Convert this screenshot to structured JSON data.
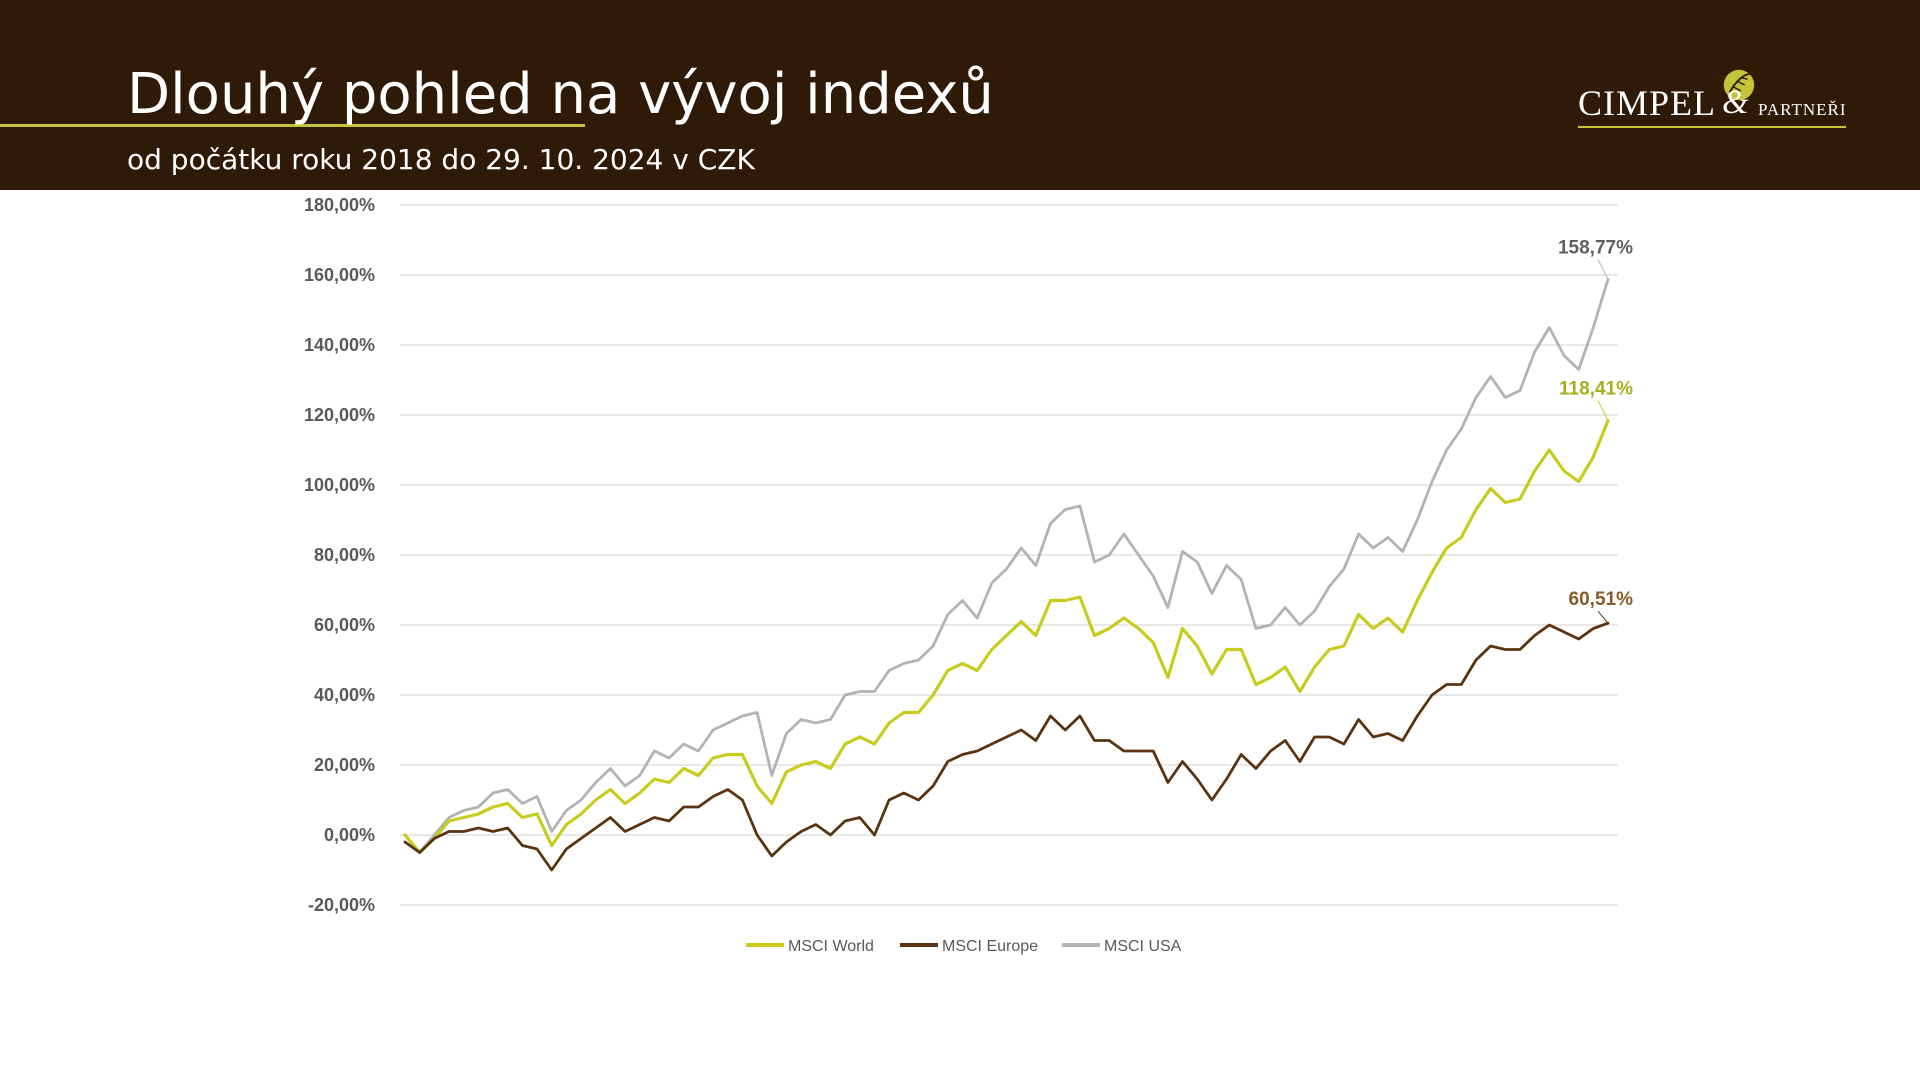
{
  "header": {
    "title": "Dlouhý pohled na vývoj indexů",
    "subtitle": "od počátku roku 2018 do 29. 10. 2024 v CZK"
  },
  "logo": {
    "word": "CIMPEL",
    "amp": "&",
    "partners": "PARTNEŘI",
    "icon": "leaf-logo-icon"
  },
  "colors": {
    "header_bg": "#2f1a08",
    "accent": "#c3c43a",
    "world": "#c7cc1f",
    "europe": "#5a3410",
    "usa": "#b3b3b3",
    "grid": "#d9d9d9"
  },
  "chart_data": {
    "type": "line",
    "title": "",
    "xlabel": "",
    "ylabel": "",
    "ylim": [
      -20,
      180
    ],
    "yticks": [
      -20,
      0,
      20,
      40,
      60,
      80,
      100,
      120,
      140,
      160,
      180
    ],
    "ytick_labels": [
      "-20,00%",
      "0,00%",
      "20,00%",
      "40,00%",
      "60,00%",
      "80,00%",
      "100,00%",
      "120,00%",
      "140,00%",
      "160,00%",
      "180,00%"
    ],
    "grid": true,
    "legend_position": "bottom",
    "series": [
      {
        "name": "MSCI World",
        "color": "#c7cc1f",
        "end_label": "118,41%",
        "values": [
          0,
          -5,
          -1,
          4,
          5,
          6,
          8,
          9,
          5,
          6,
          -3,
          3,
          6,
          10,
          13,
          9,
          12,
          16,
          15,
          19,
          17,
          22,
          23,
          23,
          14,
          9,
          18,
          20,
          21,
          19,
          26,
          28,
          26,
          32,
          35,
          35,
          40,
          47,
          49,
          47,
          53,
          57,
          61,
          57,
          67,
          67,
          68,
          57,
          59,
          62,
          59,
          55,
          45,
          59,
          54,
          46,
          53,
          53,
          43,
          45,
          48,
          41,
          48,
          53,
          54,
          63,
          59,
          62,
          58,
          67,
          75,
          82,
          85,
          93,
          99,
          95,
          96,
          104,
          110,
          104,
          101,
          108,
          118.41
        ]
      },
      {
        "name": "MSCI Europe",
        "color": "#5a3410",
        "end_label": "60,51%",
        "values": [
          -2,
          -5,
          -1,
          1,
          1,
          2,
          1,
          2,
          -3,
          -4,
          -10,
          -4,
          -1,
          2,
          5,
          1,
          3,
          5,
          4,
          8,
          8,
          11,
          13,
          10,
          0,
          -6,
          -2,
          1,
          3,
          0,
          4,
          5,
          0,
          10,
          12,
          10,
          14,
          21,
          23,
          24,
          26,
          28,
          30,
          27,
          34,
          30,
          34,
          27,
          27,
          24,
          24,
          24,
          15,
          21,
          16,
          10,
          16,
          23,
          19,
          24,
          27,
          21,
          28,
          28,
          26,
          33,
          28,
          29,
          27,
          34,
          40,
          43,
          43,
          50,
          54,
          53,
          53,
          57,
          60,
          58,
          56,
          59,
          60.51
        ]
      },
      {
        "name": "MSCI USA",
        "color": "#b3b3b3",
        "end_label": "158,77%",
        "values": [
          0,
          -5,
          0,
          5,
          7,
          8,
          12,
          13,
          9,
          11,
          1,
          7,
          10,
          15,
          19,
          14,
          17,
          24,
          22,
          26,
          24,
          30,
          32,
          34,
          35,
          17,
          29,
          33,
          32,
          33,
          40,
          41,
          41,
          47,
          49,
          50,
          54,
          63,
          67,
          62,
          72,
          76,
          82,
          77,
          89,
          93,
          94,
          78,
          80,
          86,
          80,
          74,
          65,
          81,
          78,
          69,
          77,
          73,
          59,
          60,
          65,
          60,
          64,
          71,
          76,
          86,
          82,
          85,
          81,
          90,
          101,
          110,
          116,
          125,
          131,
          125,
          127,
          138,
          145,
          137,
          133,
          145,
          158.77
        ]
      }
    ]
  }
}
